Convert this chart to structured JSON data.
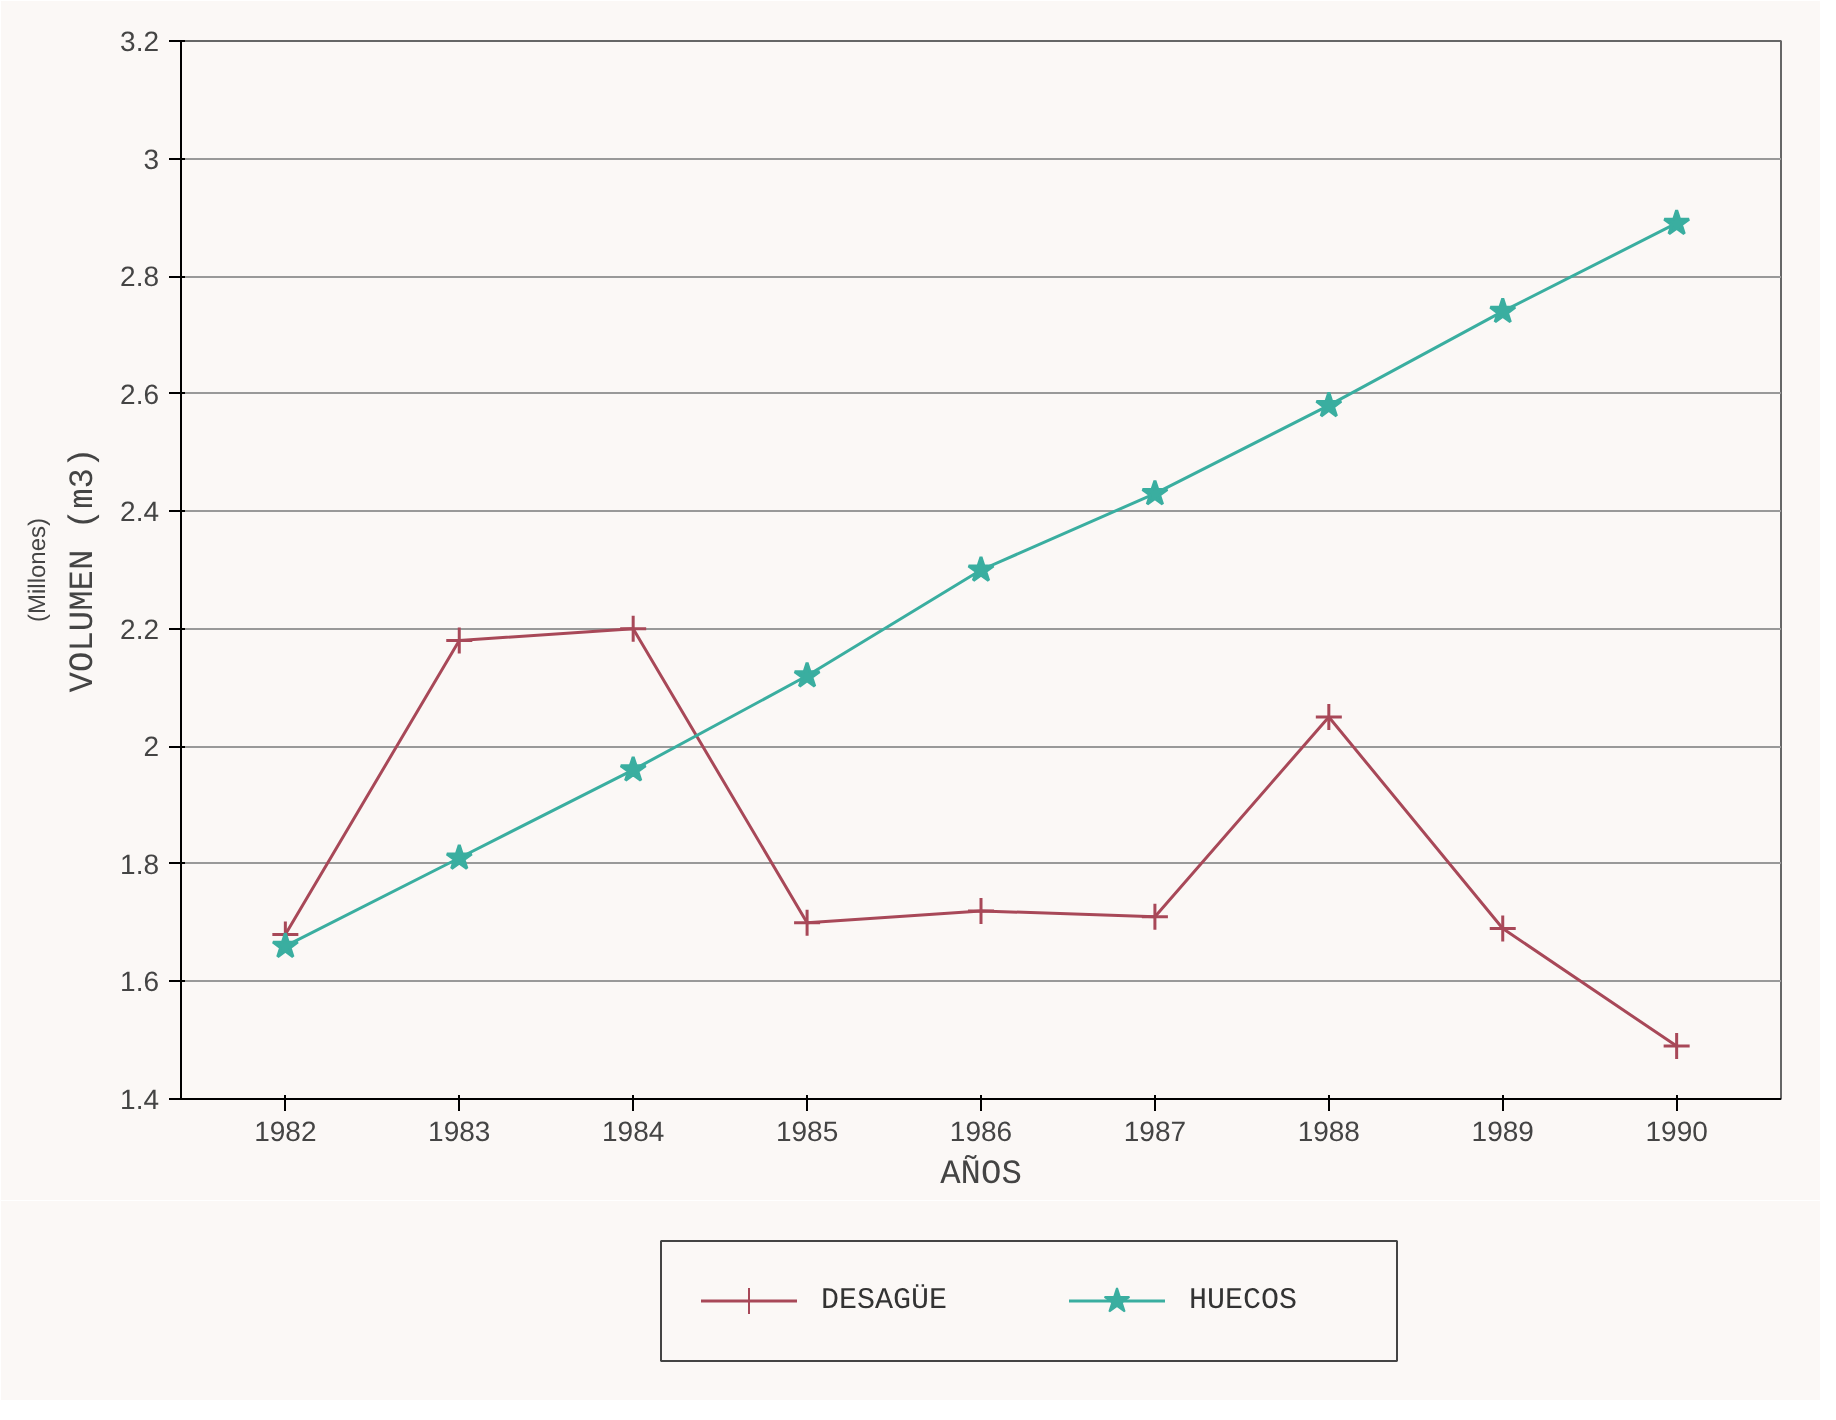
{
  "chart_data": {
    "type": "line",
    "xlabel": "AÑOS",
    "ylabel": "VOLUMEN (m3)",
    "annotations": [
      "(Millones)"
    ],
    "categories": [
      "1982",
      "1983",
      "1984",
      "1985",
      "1986",
      "1987",
      "1988",
      "1989",
      "1990"
    ],
    "series": [
      {
        "name": "DESAGÜE",
        "color": "#a84858",
        "marker": "cross",
        "values": [
          1.68,
          2.18,
          2.2,
          1.7,
          1.72,
          1.71,
          2.05,
          1.69,
          1.49
        ]
      },
      {
        "name": "HUECOS",
        "color": "#3aaea0",
        "marker": "star",
        "values": [
          1.66,
          1.81,
          1.96,
          2.12,
          2.3,
          2.43,
          2.58,
          2.74,
          2.89
        ]
      }
    ],
    "ylim": [
      1.4,
      3.2
    ],
    "yticks": [
      1.4,
      1.6,
      1.8,
      2,
      2.2,
      2.4,
      2.6,
      2.8,
      3,
      {
        "value": 3.2,
        "label": "3.2"
      }
    ],
    "grid": "y",
    "legend": "bottom",
    "line_style": "solid"
  }
}
